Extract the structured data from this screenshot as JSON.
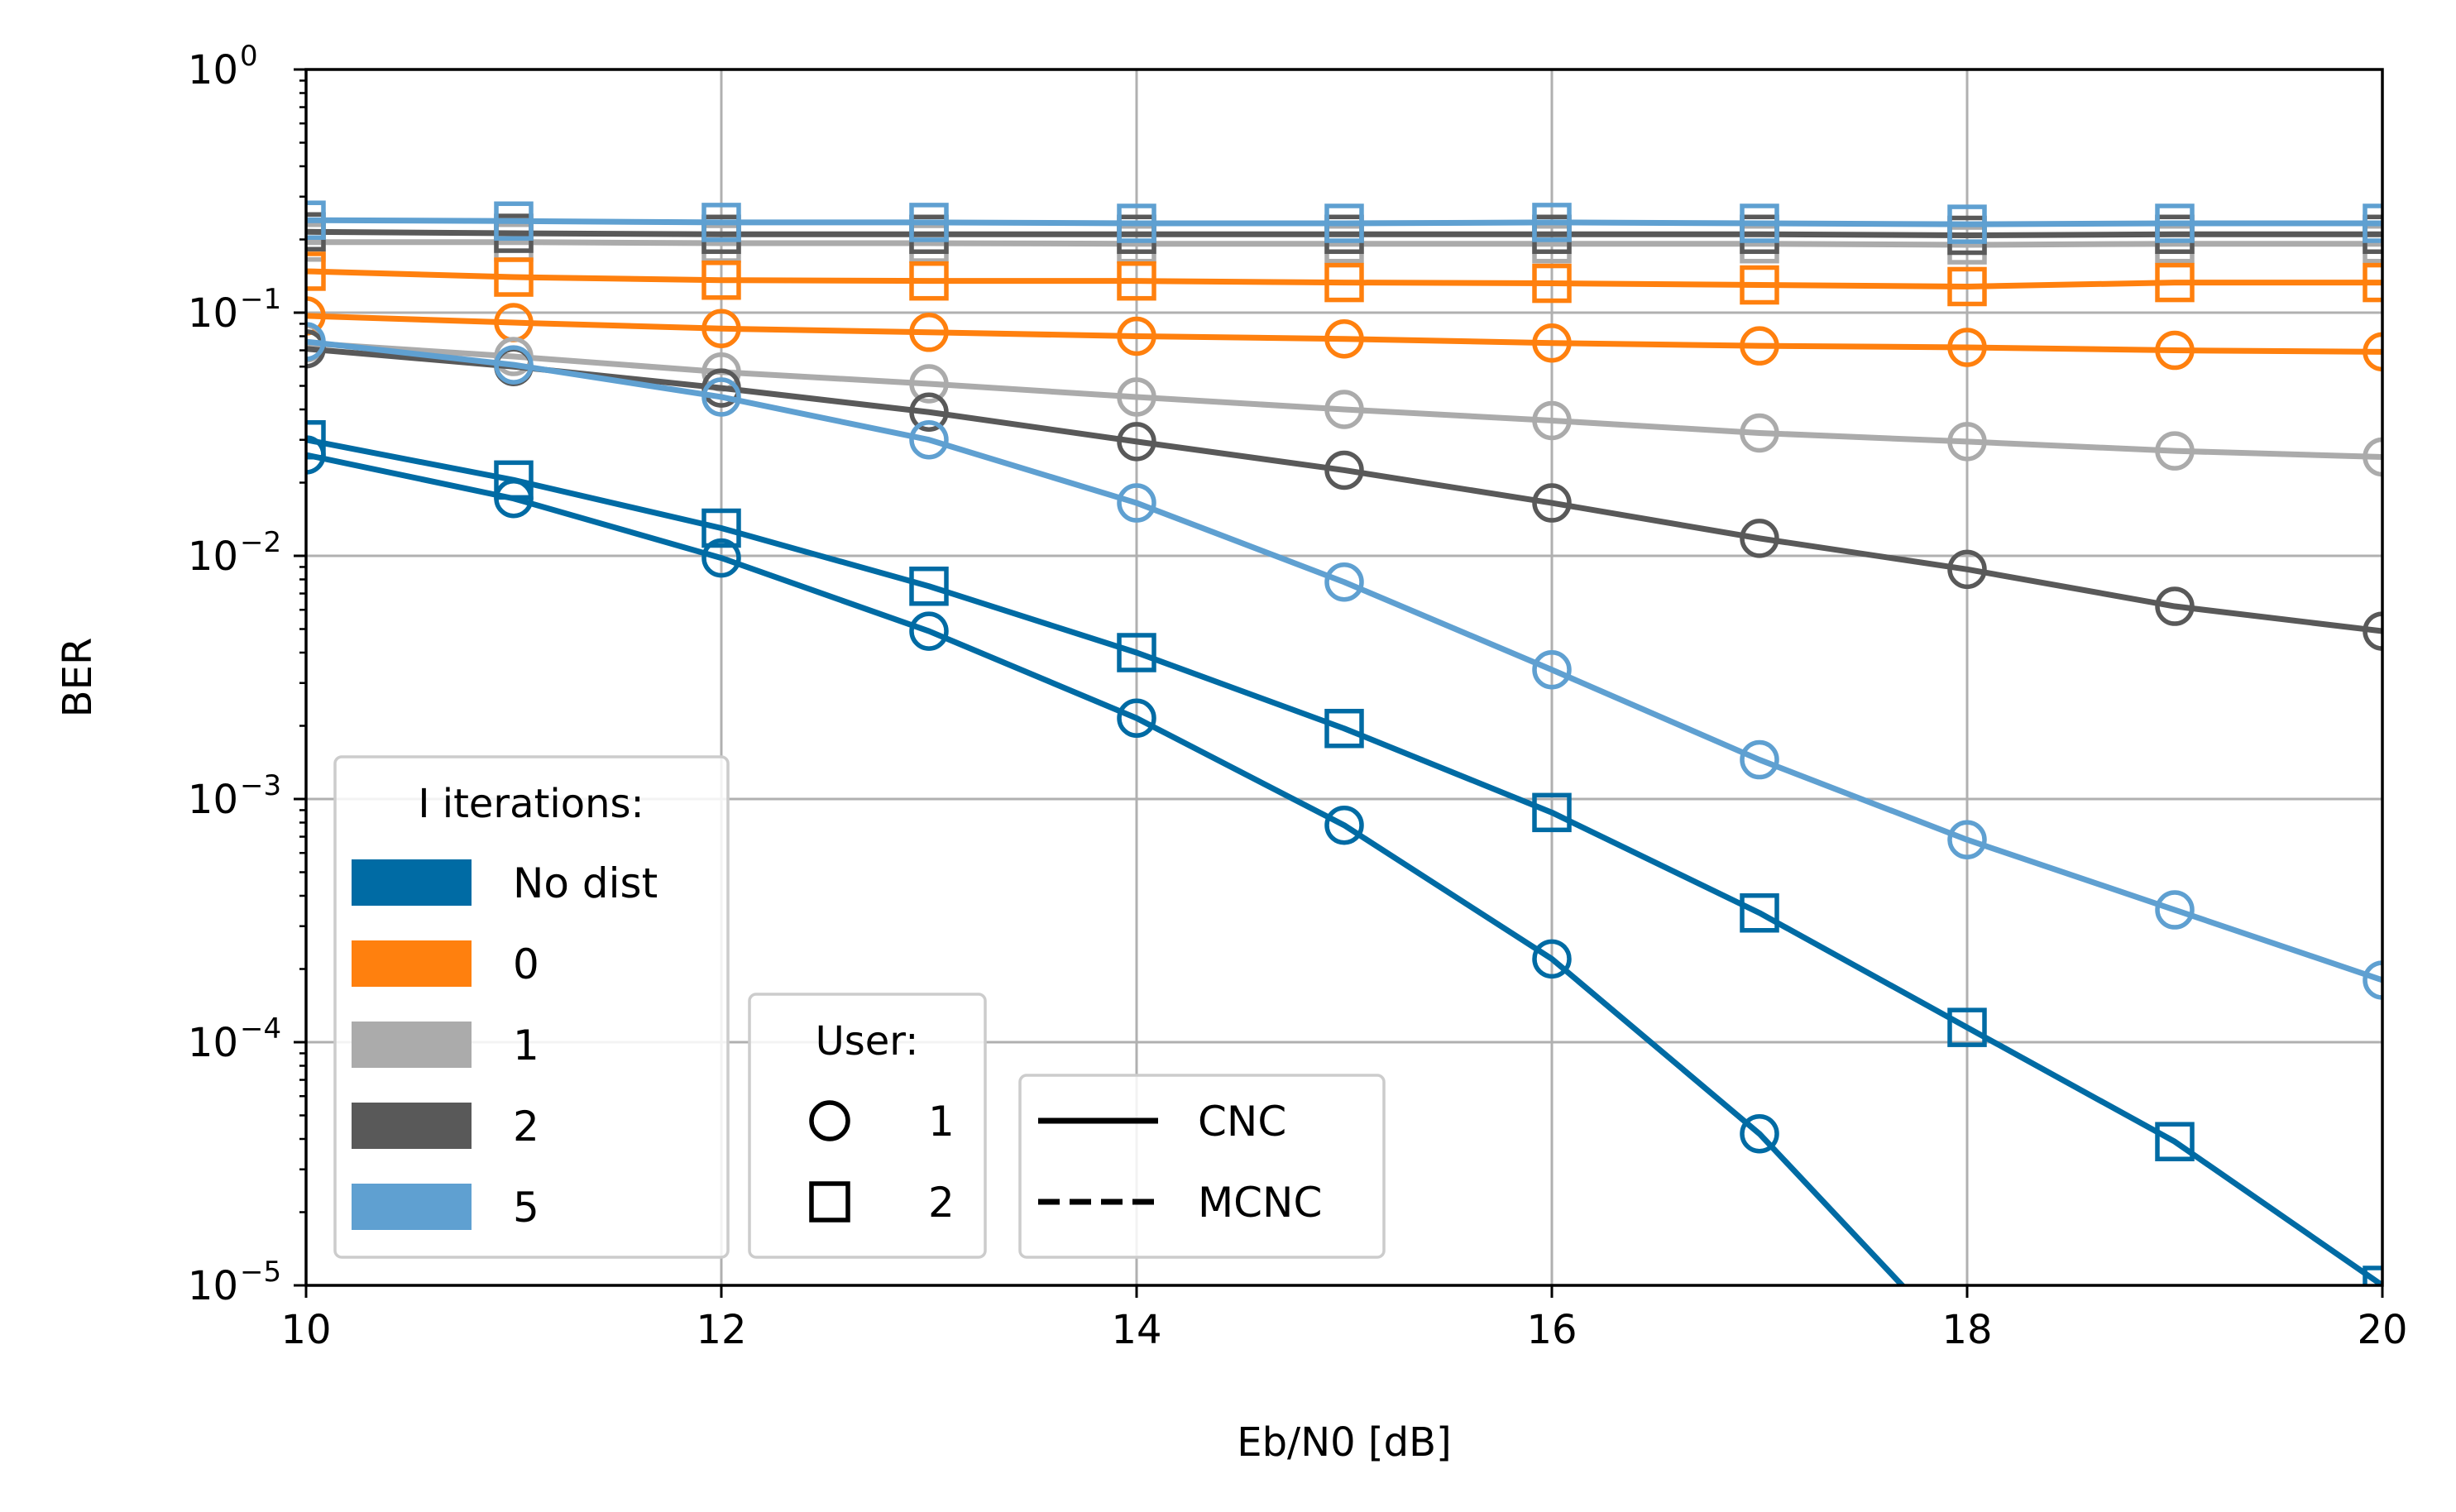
{
  "chart_data": {
    "type": "line",
    "title": "",
    "xlabel": "Eb/N0 [dB]",
    "ylabel": "BER",
    "x_scale": "linear",
    "y_scale": "log",
    "xlim": [
      10,
      20
    ],
    "ylim": [
      1e-05,
      1
    ],
    "grid": true,
    "x_ticks": [
      10,
      12,
      14,
      16,
      18,
      20
    ],
    "x_tick_labels": [
      "10",
      "12",
      "14",
      "16",
      "18",
      "20"
    ],
    "y_ticks": [
      1e-05,
      0.0001,
      0.001,
      0.01,
      0.1,
      1
    ],
    "y_tick_labels": [
      {
        "base": "10",
        "exp": "−5"
      },
      {
        "base": "10",
        "exp": "−4"
      },
      {
        "base": "10",
        "exp": "−3"
      },
      {
        "base": "10",
        "exp": "−2"
      },
      {
        "base": "10",
        "exp": "−1"
      },
      {
        "base": "10",
        "exp": "0"
      }
    ],
    "x": [
      10,
      11,
      12,
      13,
      14,
      15,
      16,
      17,
      18,
      19,
      20
    ],
    "series": [
      {
        "iter": "1",
        "user": "2",
        "color": "#ababab",
        "marker": "square",
        "values": [
          0.195,
          0.195,
          0.193,
          0.193,
          0.192,
          0.192,
          0.192,
          0.192,
          0.19,
          0.192,
          0.192
        ]
      },
      {
        "iter": "2",
        "user": "2",
        "color": "#595959",
        "marker": "square",
        "values": [
          0.215,
          0.212,
          0.21,
          0.21,
          0.21,
          0.21,
          0.21,
          0.21,
          0.208,
          0.21,
          0.21
        ]
      },
      {
        "iter": "0",
        "user": "2",
        "color": "#ff800e",
        "marker": "square",
        "values": [
          0.148,
          0.14,
          0.136,
          0.135,
          0.135,
          0.133,
          0.132,
          0.13,
          0.128,
          0.133,
          0.133
        ]
      },
      {
        "iter": "5",
        "user": "2",
        "color": "#5fa0d1",
        "marker": "square",
        "values": [
          0.24,
          0.238,
          0.235,
          0.235,
          0.233,
          0.233,
          0.235,
          0.233,
          0.231,
          0.233,
          0.233
        ]
      },
      {
        "iter": "0",
        "user": "1",
        "color": "#ff800e",
        "marker": "circle",
        "values": [
          0.097,
          0.091,
          0.086,
          0.083,
          0.08,
          0.078,
          0.075,
          0.073,
          0.072,
          0.07,
          0.069
        ]
      },
      {
        "iter": "1",
        "user": "1",
        "color": "#ababab",
        "marker": "circle",
        "values": [
          0.075,
          0.066,
          0.057,
          0.051,
          0.045,
          0.04,
          0.036,
          0.032,
          0.0295,
          0.027,
          0.0255
        ]
      },
      {
        "iter": "2",
        "user": "1",
        "color": "#595959",
        "marker": "circle",
        "values": [
          0.071,
          0.06,
          0.049,
          0.039,
          0.0295,
          0.0225,
          0.0165,
          0.0118,
          0.0088,
          0.0062,
          0.0049
        ]
      },
      {
        "iter": "5",
        "user": "1",
        "color": "#5fa0d1",
        "marker": "circle",
        "values": [
          0.076,
          0.061,
          0.045,
          0.03,
          0.0165,
          0.0078,
          0.0034,
          0.00145,
          0.00068,
          0.00035,
          0.00018
        ]
      },
      {
        "iter": "No dist",
        "user": "2",
        "color": "#006ba4",
        "marker": "square",
        "values": [
          0.03,
          0.0205,
          0.013,
          0.0075,
          0.004,
          0.00195,
          0.00088,
          0.00034,
          0.000115,
          3.9e-05,
          1e-05
        ]
      },
      {
        "iter": "No dist",
        "user": "1",
        "color": "#006ba4",
        "marker": "circle",
        "values": [
          0.026,
          0.0172,
          0.0098,
          0.0049,
          0.00215,
          0.00078,
          0.00022,
          4.2e-05,
          5.2e-06,
          null,
          null
        ]
      }
    ],
    "legend_iterations": {
      "title": "I iterations:",
      "placement": "lower-left",
      "entries": [
        {
          "label": "No dist",
          "color": "#006ba4"
        },
        {
          "label": "0",
          "color": "#ff800e"
        },
        {
          "label": "1",
          "color": "#ababab"
        },
        {
          "label": "2",
          "color": "#595959"
        },
        {
          "label": "5",
          "color": "#5fa0d1"
        }
      ]
    },
    "legend_user": {
      "title": "User:",
      "placement": "lower-center",
      "entries": [
        {
          "label": "1",
          "marker": "circle"
        },
        {
          "label": "2",
          "marker": "square"
        }
      ]
    },
    "legend_method": {
      "placement": "lower-center",
      "entries": [
        {
          "label": "CNC",
          "linestyle": "solid"
        },
        {
          "label": "MCNC",
          "linestyle": "dashed"
        }
      ]
    }
  }
}
